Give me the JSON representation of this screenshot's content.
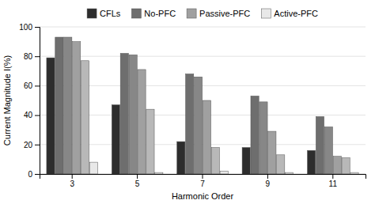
{
  "chart_data": {
    "type": "bar",
    "xlabel": "Harmonic Order",
    "ylabel": "Current Magnitude I(%)",
    "categories": [
      "3",
      "5",
      "7",
      "9",
      "11"
    ],
    "series": [
      {
        "name": "CFLs",
        "color": "#2d2d2d",
        "values": [
          79,
          47,
          22,
          18,
          16
        ]
      },
      {
        "name": "No-PFC",
        "color": "#6e6e6e",
        "values": [
          93,
          82,
          68,
          53,
          39
        ]
      },
      {
        "name": "No-PFC",
        "color": "#878787",
        "values": [
          93,
          81,
          66,
          49,
          32
        ]
      },
      {
        "name": "Passive-PFC",
        "color": "#a0a0a0",
        "values": [
          90,
          71,
          50,
          29,
          12
        ]
      },
      {
        "name": "Passive-PFC",
        "color": "#b8b8b8",
        "values": [
          77,
          44,
          18,
          13,
          11
        ]
      },
      {
        "name": "Active-PFC",
        "color": "#e8e8e8",
        "values": [
          8,
          1,
          2,
          1,
          1
        ]
      }
    ],
    "ylim": [
      0,
      100
    ],
    "yticks": [
      0,
      20,
      40,
      60,
      80,
      100
    ],
    "grid": true,
    "legend": "top"
  }
}
